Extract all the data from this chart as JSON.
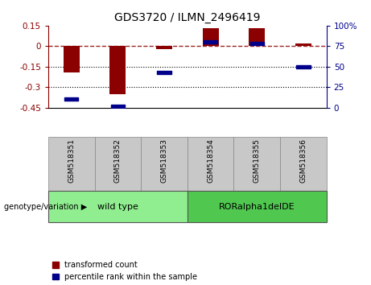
{
  "title": "GDS3720 / ILMN_2496419",
  "samples": [
    "GSM518351",
    "GSM518352",
    "GSM518353",
    "GSM518354",
    "GSM518355",
    "GSM518356"
  ],
  "red_values": [
    -0.19,
    -0.355,
    -0.02,
    0.13,
    0.13,
    0.02
  ],
  "blue_values_pct": [
    10,
    2,
    43,
    80,
    78,
    50
  ],
  "ylim_left": [
    -0.45,
    0.15
  ],
  "ylim_right": [
    0,
    100
  ],
  "yticks_left": [
    0.15,
    0,
    -0.15,
    -0.3,
    -0.45
  ],
  "yticks_right": [
    100,
    75,
    50,
    25,
    0
  ],
  "hlines": [
    -0.15,
    -0.3
  ],
  "dashed_hline": 0,
  "group1_label": "wild type",
  "group2_label": "RORalpha1delDE",
  "group1_color": "#90EE90",
  "group2_color": "#50C850",
  "group_label_prefix": "genotype/variation",
  "legend_red": "transformed count",
  "legend_blue": "percentile rank within the sample",
  "red_color": "#8B0000",
  "blue_color": "#00008B",
  "bar_width": 0.35,
  "n_group1": 3,
  "n_group2": 3
}
